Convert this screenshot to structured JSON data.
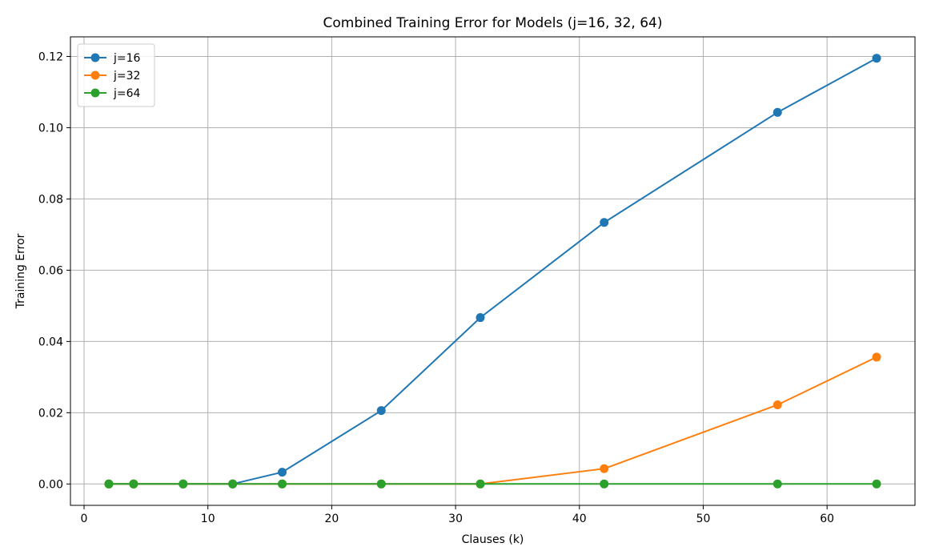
{
  "chart_data": {
    "type": "line",
    "title": "Combined Training Error for Models (j=16, 32, 64)",
    "xlabel": "Clauses (k)",
    "ylabel": "Training Error",
    "xlim": [
      -1.1,
      67.1
    ],
    "ylim": [
      -0.006,
      0.1255
    ],
    "xticks": [
      0,
      10,
      20,
      30,
      40,
      50,
      60
    ],
    "xtick_labels": [
      "0",
      "10",
      "20",
      "30",
      "40",
      "50",
      "60"
    ],
    "yticks": [
      0.0,
      0.02,
      0.04,
      0.06,
      0.08,
      0.1,
      0.12
    ],
    "ytick_labels": [
      "0.00",
      "0.02",
      "0.04",
      "0.06",
      "0.08",
      "0.10",
      "0.12"
    ],
    "grid": true,
    "legend_position": "top-left",
    "series": [
      {
        "name": "j=16",
        "color": "#1f77b4",
        "x": [
          2,
          4,
          8,
          12,
          16,
          24,
          32,
          42,
          56,
          64
        ],
        "y": [
          0.0,
          0.0,
          0.0,
          0.0,
          0.0033,
          0.0206,
          0.0467,
          0.0734,
          0.1043,
          0.1195
        ]
      },
      {
        "name": "j=32",
        "color": "#ff7f0e",
        "x": [
          2,
          4,
          8,
          12,
          16,
          24,
          32,
          42,
          56,
          64
        ],
        "y": [
          0.0,
          0.0,
          0.0,
          0.0,
          0.0,
          0.0,
          0.0,
          0.0043,
          0.0222,
          0.0356
        ]
      },
      {
        "name": "j=64",
        "color": "#2ca02c",
        "x": [
          2,
          4,
          8,
          12,
          16,
          24,
          32,
          42,
          56,
          64
        ],
        "y": [
          0.0,
          0.0,
          0.0,
          0.0,
          0.0,
          0.0,
          0.0,
          0.0,
          0.0,
          0.0
        ]
      }
    ]
  }
}
